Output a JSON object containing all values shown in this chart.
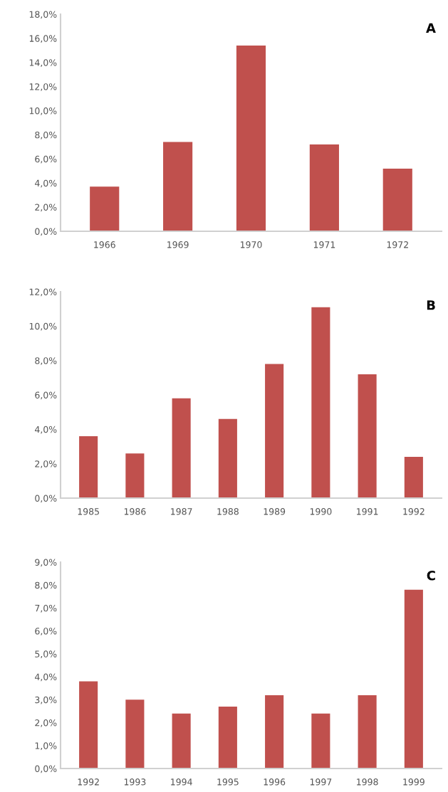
{
  "chart_data": [
    {
      "type": "bar",
      "annotations": [
        "A"
      ],
      "color": "#c0504d",
      "grid": false,
      "categories": [
        "1966",
        "1969",
        "1970",
        "1971",
        "1972"
      ],
      "values": [
        3.7,
        7.4,
        15.4,
        7.2,
        5.2
      ],
      "ylim": [
        0,
        18
      ],
      "yticks": [
        {
          "value": 0,
          "label": "0,0%"
        },
        {
          "value": 2,
          "label": "2,0%"
        },
        {
          "value": 4,
          "label": "4,0%"
        },
        {
          "value": 6,
          "label": "6,0%"
        },
        {
          "value": 8,
          "label": "8,0%"
        },
        {
          "value": 10,
          "label": "10,0%"
        },
        {
          "value": 12,
          "label": "12,0%"
        },
        {
          "value": 14,
          "label": "14,0%"
        },
        {
          "value": 16,
          "label": "16,0%"
        },
        {
          "value": 18,
          "label": "18,0%"
        }
      ]
    },
    {
      "type": "bar",
      "annotations": [
        "B"
      ],
      "color": "#c0504d",
      "grid": false,
      "categories": [
        "1985",
        "1986",
        "1987",
        "1988",
        "1989",
        "1990",
        "1991",
        "1992"
      ],
      "values": [
        3.6,
        2.6,
        5.8,
        4.6,
        7.8,
        11.1,
        7.2,
        2.4
      ],
      "ylim": [
        0,
        12
      ],
      "yticks": [
        {
          "value": 0,
          "label": "0,0%"
        },
        {
          "value": 2,
          "label": "2,0%"
        },
        {
          "value": 4,
          "label": "4,0%"
        },
        {
          "value": 6,
          "label": "6,0%"
        },
        {
          "value": 8,
          "label": "8,0%"
        },
        {
          "value": 10,
          "label": "10,0%"
        },
        {
          "value": 12,
          "label": "12,0%"
        }
      ]
    },
    {
      "type": "bar",
      "annotations": [
        "C"
      ],
      "color": "#c0504d",
      "grid": false,
      "categories": [
        "1992",
        "1993",
        "1994",
        "1995",
        "1996",
        "1997",
        "1998",
        "1999"
      ],
      "values": [
        3.8,
        3.0,
        2.4,
        2.7,
        3.2,
        2.4,
        3.2,
        7.8
      ],
      "ylim": [
        0,
        9
      ],
      "yticks": [
        {
          "value": 0,
          "label": "0,0%"
        },
        {
          "value": 1,
          "label": "1,0%"
        },
        {
          "value": 2,
          "label": "2,0%"
        },
        {
          "value": 3,
          "label": "3,0%"
        },
        {
          "value": 4,
          "label": "4,0%"
        },
        {
          "value": 5,
          "label": "5,0%"
        },
        {
          "value": 6,
          "label": "6,0%"
        },
        {
          "value": 7,
          "label": "7,0%"
        },
        {
          "value": 8,
          "label": "8,0%"
        },
        {
          "value": 9,
          "label": "9,0%"
        }
      ]
    }
  ]
}
